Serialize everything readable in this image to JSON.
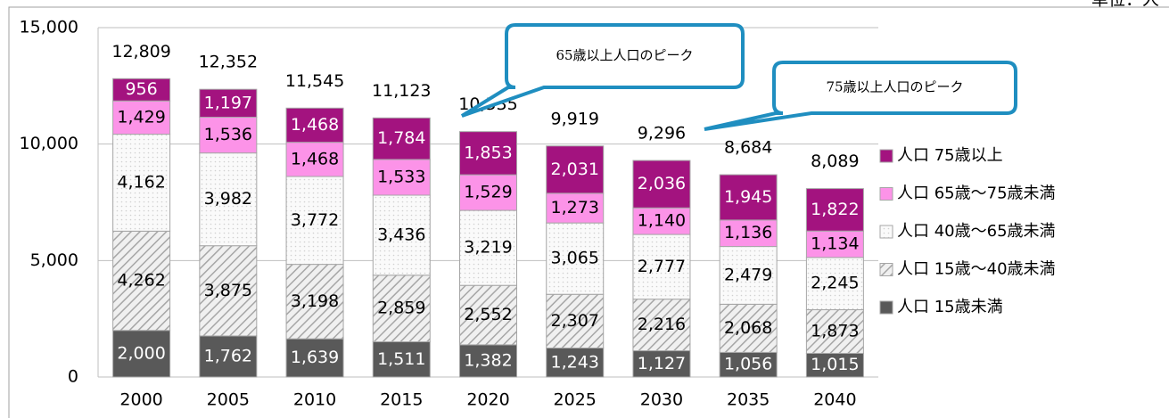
{
  "chart_data": {
    "type": "stacked_bar",
    "unit": "単位：人",
    "annotations": [
      "65歳以上人口のピーク",
      "75歳以上人口のピーク"
    ],
    "categories": [
      "2000",
      "2005",
      "2010",
      "2015",
      "2020",
      "2025",
      "2030",
      "2035",
      "2040"
    ],
    "series": [
      {
        "name": "人口 15歳未満",
        "color": "#595959",
        "values": [
          2000,
          1762,
          1639,
          1511,
          1382,
          1243,
          1127,
          1056,
          1015
        ],
        "value_labels": [
          "2,000",
          "1,762",
          "1,639",
          "1,511",
          "1,382",
          "1,243",
          "1,127",
          "1,056",
          "1,015"
        ]
      },
      {
        "name": "人口 15歳～40歳未満",
        "color": "#f0f0f0",
        "pattern": "hatch",
        "values": [
          4262,
          3875,
          3198,
          2859,
          2552,
          2307,
          2216,
          2068,
          1873
        ],
        "value_labels": [
          "4,262",
          "3,875",
          "3,198",
          "2,859",
          "2,552",
          "2,307",
          "2,216",
          "2,068",
          "1,873"
        ]
      },
      {
        "name": "人口 40歳～65歳未満",
        "color": "#fafafa",
        "pattern": "dots",
        "values": [
          4162,
          3982,
          3772,
          3436,
          3219,
          3065,
          2777,
          2479,
          2245
        ],
        "value_labels": [
          "4,162",
          "3,982",
          "3,772",
          "3,436",
          "3,219",
          "3,065",
          "2,777",
          "2,479",
          "2,245"
        ]
      },
      {
        "name": "人口 65歳～75歳未満",
        "color": "#fc93e8",
        "values": [
          1429,
          1536,
          1468,
          1533,
          1529,
          1273,
          1140,
          1136,
          1134
        ],
        "value_labels": [
          "1,429",
          "1,536",
          "1,468",
          "1,533",
          "1,529",
          "1,273",
          "1,140",
          "1,136",
          "1,134"
        ]
      },
      {
        "name": "人口 75歳以上",
        "color": "#a3137f",
        "values": [
          956,
          1197,
          1468,
          1784,
          1853,
          2031,
          2036,
          1945,
          1822
        ],
        "value_labels": [
          "956",
          "1,197",
          "1,468",
          "1,784",
          "1,853",
          "2,031",
          "2,036",
          "1,945",
          "1,822"
        ]
      }
    ],
    "totals": [
      12809,
      12352,
      11545,
      11123,
      10535,
      9919,
      9296,
      8684,
      8089
    ],
    "total_labels": [
      "12,809",
      "12,352",
      "11,545",
      "11,123",
      "10,535",
      "9,919",
      "9,296",
      "8,684",
      "8,089"
    ],
    "ylim": [
      0,
      15000
    ],
    "yticks": [
      0,
      {
        "value": 5000,
        "label": "5,000"
      },
      {
        "value": 10000,
        "label": "10,000"
      },
      {
        "value": 15000,
        "label": "15,000"
      }
    ],
    "grid": true,
    "legend": "right"
  }
}
